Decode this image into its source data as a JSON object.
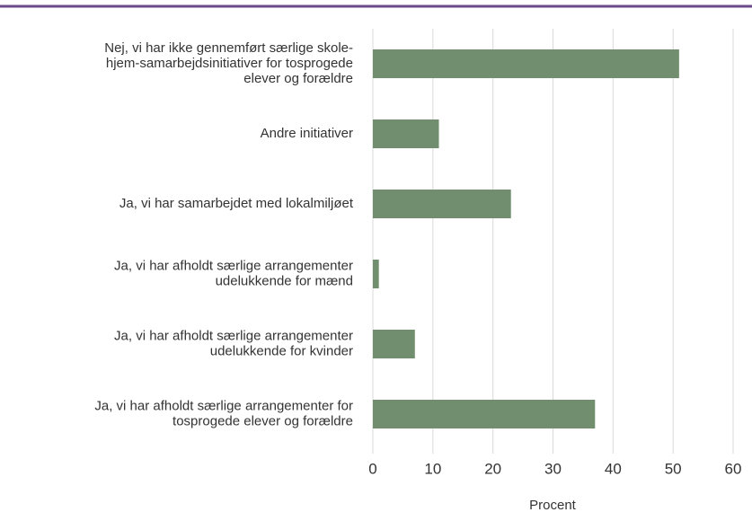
{
  "chart_data": {
    "type": "bar",
    "orientation": "horizontal",
    "categories": [
      "Nej, vi har ikke gennemført særlige skole-\nhjem-samarbejdsinitiativer for tosprogede\nelever og forældre",
      "Andre initiativer",
      "Ja, vi har samarbejdet med lokalmiljøet",
      "Ja, vi har afholdt særlige arrangementer\nudelukkende for mænd",
      "Ja, vi har afholdt særlige arrangementer\nudelukkende for kvinder",
      "Ja, vi har afholdt særlige arrangementer for\ntosprogede elever og forældre"
    ],
    "values": [
      51,
      11,
      23,
      1,
      7,
      37
    ],
    "color": "#718f6f",
    "xlabel": "Procent",
    "xlim": [
      0,
      60
    ],
    "xticks": [
      0,
      10,
      20,
      30,
      40,
      50,
      60
    ],
    "grid": true
  }
}
